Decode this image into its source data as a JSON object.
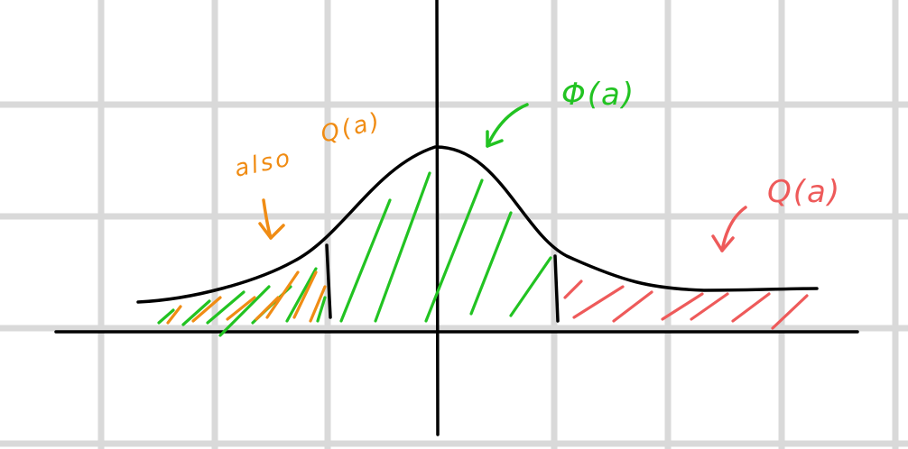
{
  "labels": {
    "phi": "Φ(a)",
    "q_right": "Q(a)",
    "also": "also",
    "q_left": "Q(a)"
  },
  "colors": {
    "grid": "#d9d9d9",
    "axis": "#000000",
    "curve": "#000000",
    "green": "#22c322",
    "orange": "#f08c14",
    "red": "#ee5a5a"
  }
}
